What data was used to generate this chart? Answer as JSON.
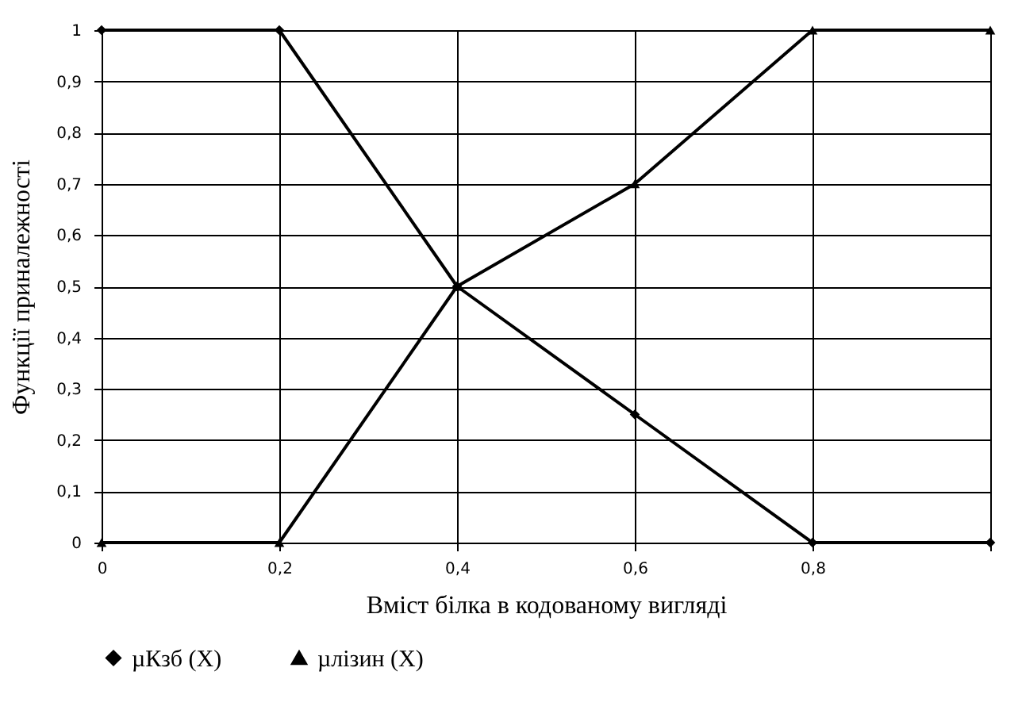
{
  "chart_data": {
    "type": "line",
    "xlabel": "Вміст білка в кодованому вигляді",
    "ylabel": "Функції приналежності",
    "x": [
      0,
      0.2,
      0.4,
      0.6,
      0.8,
      1
    ],
    "series": [
      {
        "name": "µКзб (X)",
        "color": "#000000",
        "marker": "diamond",
        "values": [
          1,
          1,
          0.5,
          0.25,
          0,
          0
        ]
      },
      {
        "name": "µлізин (X)",
        "color": "#000000",
        "marker": "triangle",
        "values": [
          0,
          0,
          0.5,
          0.7,
          1,
          1
        ]
      }
    ],
    "xlim": [
      0,
      1
    ],
    "xticks": [
      0,
      {
        "value": 0.2,
        "label": "0,2"
      },
      {
        "value": 0.4,
        "label": "0,4"
      },
      {
        "value": 0.6,
        "label": "0,6"
      },
      {
        "value": 0.8,
        "label": "0,8"
      },
      {
        "value": 1,
        "label": null
      }
    ],
    "ylim": [
      0,
      1
    ],
    "yticks": [
      0,
      {
        "value": 0.1,
        "label": "0,1"
      },
      {
        "value": 0.2,
        "label": "0,2"
      },
      {
        "value": 0.3,
        "label": "0,3"
      },
      {
        "value": 0.4,
        "label": "0,4"
      },
      {
        "value": 0.5,
        "label": "0,5"
      },
      {
        "value": 0.6,
        "label": "0,6"
      },
      {
        "value": 0.7,
        "label": "0,7"
      },
      {
        "value": 0.8,
        "label": "0,8"
      },
      {
        "value": 0.9,
        "label": "0,9"
      },
      1
    ],
    "grid": true,
    "legend": "bottom",
    "line_style": "solid"
  }
}
